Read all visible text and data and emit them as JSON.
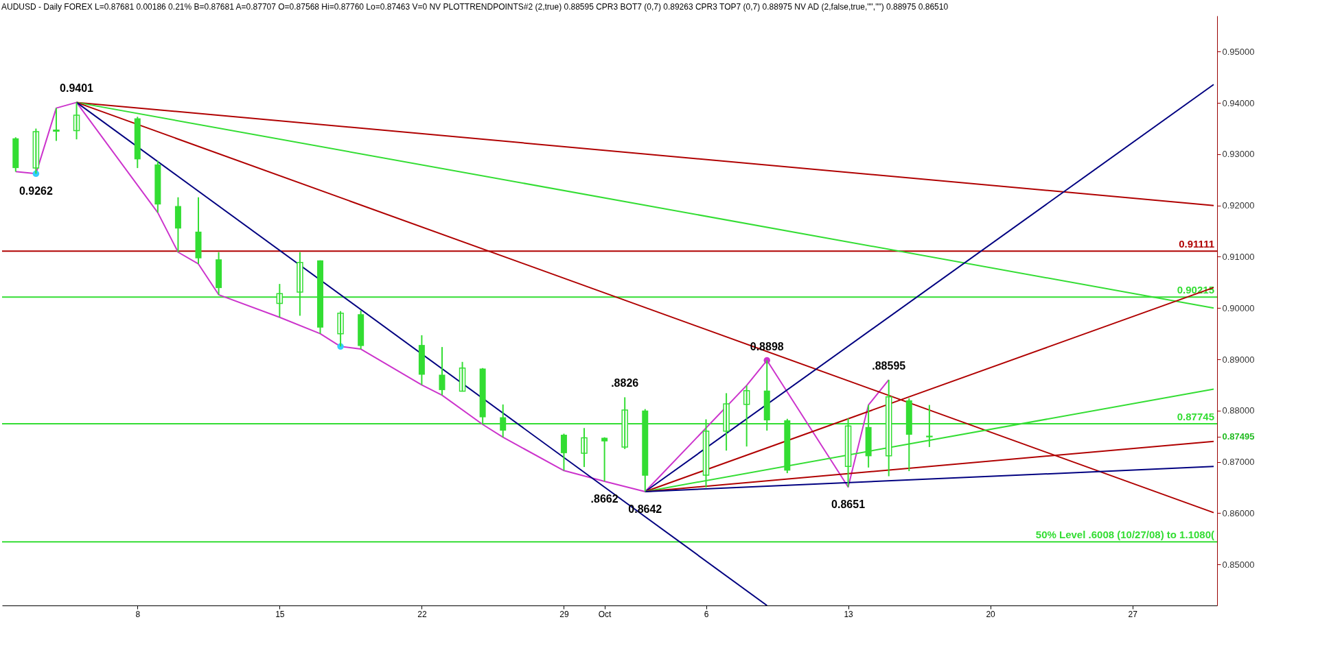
{
  "chart_data": {
    "type": "candlestick",
    "title": "AUDUSD - Daily  FOREX  L=0.87681  0.00186  0.21%  B=0.87681  A=0.87707  O=0.87568  Hi=0.87760  Lo=0.87463  V=0  NV  PLOTTRENDPOINTS#2 (2,true)  0.88595  CPR3 BOT7 (0,7)  0.89263  CPR3 TOP7 (0,7)  0.88975  NV AD (2,false,true,\"\",\"\")  0.88975  0.86510",
    "color": "#33dd33",
    "x": [
      "--09-02",
      "--09-03",
      "--09-04",
      "--09-05",
      "--09-08",
      "--09-09",
      "--09-10",
      "--09-11",
      "--09-12",
      "--09-15",
      "--09-16",
      "--09-17",
      "--09-18",
      "--09-19",
      "--09-22",
      "--09-23",
      "--09-24",
      "--09-25",
      "--09-26",
      "--09-29",
      "--09-30",
      "--10-01",
      "--10-02",
      "--10-03",
      "--10-06",
      "--10-07",
      "--10-08",
      "--10-09",
      "--10-10",
      "--10-13",
      "--10-14",
      "--10-15",
      "--10-16",
      "--10-17"
    ],
    "ohlc": [
      [
        0.9331,
        0.9333,
        0.9266,
        0.9273
      ],
      [
        0.9273,
        0.935,
        0.9262,
        0.9344
      ],
      [
        0.9345,
        0.939,
        0.9326,
        0.9347
      ],
      [
        0.9346,
        0.9401,
        0.9329,
        0.9376
      ],
      [
        0.937,
        0.9373,
        0.9273,
        0.929
      ],
      [
        0.928,
        0.9287,
        0.9186,
        0.9202
      ],
      [
        0.9199,
        0.9216,
        0.9109,
        0.9155
      ],
      [
        0.9149,
        0.9216,
        0.9086,
        0.9097
      ],
      [
        0.9095,
        0.9109,
        0.9026,
        0.9039
      ],
      [
        0.9009,
        0.9047,
        0.8982,
        0.9028
      ],
      [
        0.9031,
        0.9109,
        0.8985,
        0.9089
      ],
      [
        0.9093,
        0.9093,
        0.895,
        0.8962
      ],
      [
        0.895,
        0.8994,
        0.8925,
        0.899
      ],
      [
        0.8988,
        0.8995,
        0.892,
        0.8926
      ],
      [
        0.8928,
        0.8947,
        0.885,
        0.887
      ],
      [
        0.887,
        0.8924,
        0.883,
        0.884
      ],
      [
        0.8838,
        0.8895,
        0.8837,
        0.8883
      ],
      [
        0.8882,
        0.8883,
        0.8773,
        0.8787
      ],
      [
        0.8787,
        0.8812,
        0.8748,
        0.8761
      ],
      [
        0.8753,
        0.8755,
        0.8683,
        0.8717
      ],
      [
        0.8717,
        0.8766,
        0.869,
        0.8747
      ],
      [
        0.8747,
        0.8748,
        0.8662,
        0.874
      ],
      [
        0.8729,
        0.8826,
        0.8725,
        0.8801
      ],
      [
        0.88,
        0.8803,
        0.8642,
        0.8673
      ],
      [
        0.8674,
        0.8783,
        0.865,
        0.876
      ],
      [
        0.876,
        0.8834,
        0.8722,
        0.8813
      ],
      [
        0.8812,
        0.8849,
        0.873,
        0.8839
      ],
      [
        0.8839,
        0.8898,
        0.8761,
        0.8781
      ],
      [
        0.8781,
        0.8784,
        0.8678,
        0.8683
      ],
      [
        0.8691,
        0.8785,
        0.8651,
        0.877
      ],
      [
        0.8768,
        0.8811,
        0.8689,
        0.8711
      ],
      [
        0.8712,
        0.886,
        0.8672,
        0.8827
      ],
      [
        0.882,
        0.8824,
        0.8682,
        0.8753
      ],
      [
        0.8749,
        0.8811,
        0.8729,
        0.875
      ]
    ],
    "series": [
      {
        "type": "line",
        "color": "#cc33cc",
        "x": [
          "--09-02",
          "--09-03",
          "--09-04",
          "--09-05",
          "--09-09",
          "--09-10",
          "--09-11",
          "--09-12",
          "--09-15",
          "--09-17",
          "--09-18",
          "--09-19",
          "--09-22",
          "--09-23",
          "--09-25",
          "--09-26",
          "--09-29",
          "--10-01",
          "--10-03",
          "--10-08",
          "--10-09",
          "--10-13",
          "--10-14",
          "--10-15"
        ],
        "values": [
          0.9266,
          0.9262,
          0.939,
          0.9401,
          0.9186,
          0.9109,
          0.9086,
          0.9026,
          0.8982,
          0.895,
          0.8925,
          0.892,
          0.885,
          0.883,
          0.8773,
          0.8748,
          0.8683,
          0.8662,
          0.8642,
          0.8849,
          0.8898,
          0.8651,
          0.8811,
          0.886
        ]
      },
      {
        "type": "line",
        "color": "#b00000",
        "x": [
          "--09-05",
          "--10-31"
        ],
        "values": [
          0.9401,
          0.92
        ]
      },
      {
        "type": "line",
        "color": "#33dd33",
        "x": [
          "--09-05",
          "--10-31"
        ],
        "values": [
          0.9401,
          0.9
        ]
      },
      {
        "type": "line",
        "color": "#b00000",
        "x": [
          "--09-05",
          "--10-31"
        ],
        "values": [
          0.9401,
          0.8601
        ]
      },
      {
        "type": "line",
        "color": "#000080",
        "x": [
          "--09-05",
          "--10-09"
        ],
        "values": [
          0.9401,
          0.842
        ]
      },
      {
        "type": "line",
        "color": "#000080",
        "x": [
          "--10-03",
          "--10-31"
        ],
        "values": [
          0.8642,
          0.9436
        ]
      },
      {
        "type": "line",
        "color": "#b00000",
        "x": [
          "--10-03",
          "--10-31"
        ],
        "values": [
          0.8642,
          0.904
        ]
      },
      {
        "type": "line",
        "color": "#33dd33",
        "x": [
          "--10-03",
          "--10-31"
        ],
        "values": [
          0.8642,
          0.8842
        ]
      },
      {
        "type": "line",
        "color": "#b00000",
        "x": [
          "--10-03",
          "--10-31"
        ],
        "values": [
          0.8642,
          0.874
        ]
      },
      {
        "type": "line",
        "color": "#000080",
        "x": [
          "--10-03",
          "--10-31"
        ],
        "values": [
          0.8642,
          0.8691
        ]
      },
      {
        "type": "scatter",
        "color": "#cc33cc",
        "marker": "circle",
        "x": [
          "--10-09"
        ],
        "values": [
          0.8898
        ]
      },
      {
        "type": "scatter",
        "color": "#33ccff",
        "marker": "circle",
        "x": [
          "--09-03",
          "--09-18"
        ],
        "values": [
          0.9262,
          0.8925
        ]
      }
    ],
    "ref_lines": [
      {
        "axis": "y",
        "value": 0.91111,
        "label": "0.91111",
        "color": "#b00000"
      },
      {
        "axis": "y",
        "value": 0.90215,
        "label": "0.90215",
        "color": "#33dd33"
      },
      {
        "axis": "y",
        "value": 0.87745,
        "label": "0.87745",
        "color": "#33dd33"
      },
      {
        "axis": "y",
        "value": 0.8544,
        "label": "50% Level    .6008 (10/27/08) to 1.1080(",
        "color": "#33dd33"
      }
    ],
    "annotations": [
      {
        "text": "0.9401",
        "x": "--09-05",
        "y": 0.9401
      },
      {
        "text": "0.9262",
        "x": "--09-03",
        "y": 0.9262
      },
      {
        "text": ".8826",
        "x": "--10-02",
        "y": 0.8826
      },
      {
        "text": ".8662",
        "x": "--10-01",
        "y": 0.8662
      },
      {
        "text": "0.8642",
        "x": "--10-03",
        "y": 0.8642
      },
      {
        "text": "0.8898",
        "x": "--10-09",
        "y": 0.8898
      },
      {
        "text": "0.8651",
        "x": "--10-13",
        "y": 0.8651
      },
      {
        "text": ".88595",
        "x": "--10-15",
        "y": 0.886
      }
    ],
    "xlim": [
      "--09-01T12:00",
      "--10-31"
    ],
    "xticks": [
      {
        "value": "--09-08",
        "label": "8"
      },
      {
        "value": "--09-15",
        "label": "15"
      },
      {
        "value": "--09-22",
        "label": "22"
      },
      {
        "value": "--09-29",
        "label": "29"
      },
      {
        "value": "--10-01",
        "label": "Oct"
      },
      {
        "value": "--10-06",
        "label": "6"
      },
      {
        "value": "--10-13",
        "label": "13"
      },
      {
        "value": "--10-20",
        "label": "20"
      },
      {
        "value": "--10-27",
        "label": "27"
      }
    ],
    "ylim": [
      0.842,
      0.957
    ],
    "yticks": [
      {
        "value": 0.85,
        "label": "0.85000"
      },
      {
        "value": 0.86,
        "label": "0.86000"
      },
      {
        "value": 0.87,
        "label": "0.87000"
      },
      {
        "value": 0.87495,
        "label": "0.87495"
      },
      {
        "value": 0.88,
        "label": "0.88000"
      },
      {
        "value": 0.89,
        "label": "0.89000"
      },
      {
        "value": 0.9,
        "label": "0.90000"
      },
      {
        "value": 0.91,
        "label": "0.91000"
      },
      {
        "value": 0.92,
        "label": "0.92000"
      },
      {
        "value": 0.93,
        "label": "0.93000"
      },
      {
        "value": 0.94,
        "label": "0.94000"
      },
      {
        "value": 0.95,
        "label": "0.95000"
      }
    ]
  }
}
